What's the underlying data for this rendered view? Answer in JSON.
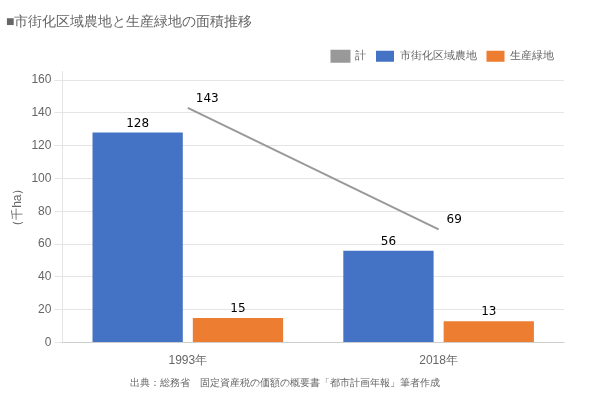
{
  "chart_data": {
    "type": "bar",
    "title": "■市街化区域農地と生産緑地の面積推移",
    "y_label": "（千ha）",
    "annotations": [
      "出典：総務省　固定資産税の価額の概要書「都市計画年報」筆者作成"
    ],
    "categories": [
      "1993年",
      "2018年"
    ],
    "series": [
      {
        "name": "市街化区域農地",
        "type": "bar",
        "color": "#4472C4",
        "values": [
          128,
          56
        ]
      },
      {
        "name": "生産緑地",
        "type": "bar",
        "color": "#ED7D31",
        "values": [
          15,
          13
        ]
      },
      {
        "name": "計",
        "type": "line",
        "color": "#999999",
        "values": [
          143,
          69
        ]
      }
    ],
    "ylim": [
      0,
      165
    ],
    "yticks": [
      0,
      20,
      40,
      60,
      80,
      100,
      120,
      140,
      160
    ],
    "grid": "y",
    "legend": "upper right",
    "data_labels": true
  }
}
